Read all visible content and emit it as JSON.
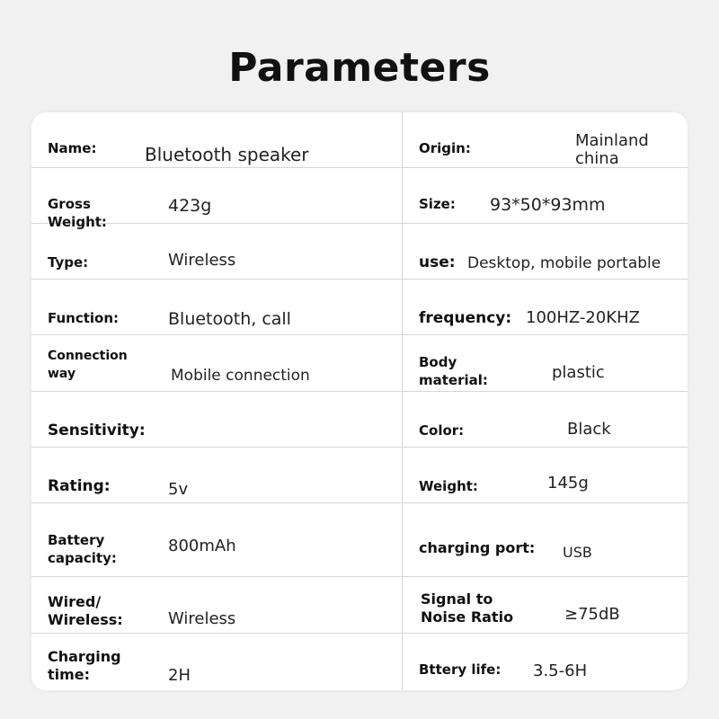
{
  "title": "Parameters",
  "rows": [
    {
      "left": {
        "label": "Name:",
        "value": "Bluetooth speaker"
      },
      "right": {
        "label": "Origin:",
        "value": "Mainland\nchina"
      }
    },
    {
      "left": {
        "label": "Gross\nWeight:",
        "value": "423g"
      },
      "right": {
        "label": "Size:",
        "value": "93*50*93mm"
      }
    },
    {
      "left": {
        "label": "Type:",
        "value": "Wireless"
      },
      "right": {
        "label": "use:",
        "value": "Desktop, mobile portable"
      }
    },
    {
      "left": {
        "label": "Function:",
        "value": "Bluetooth, call"
      },
      "right": {
        "label": "frequency:",
        "value": "100HZ-20KHZ"
      }
    },
    {
      "left": {
        "label": "Connection\nway",
        "value": "Mobile connection"
      },
      "right": {
        "label": "Body\nmaterial:",
        "value": "plastic"
      }
    },
    {
      "left": {
        "label": "Sensitivity:",
        "value": ""
      },
      "right": {
        "label": "Color:",
        "value": "Black"
      }
    },
    {
      "left": {
        "label": "Rating:",
        "value": "5v"
      },
      "right": {
        "label": "Weight:",
        "value": "145g"
      }
    },
    {
      "left": {
        "label": "Battery\ncapacity:",
        "value": "800mAh"
      },
      "right": {
        "label": "charging port:",
        "value": "USB"
      }
    },
    {
      "left": {
        "label": "Wired/\nWireless:",
        "value": "Wireless"
      },
      "right": {
        "label": "Signal to\nNoise Ratio",
        "value": "≥75dB"
      }
    },
    {
      "left": {
        "label": "Charging\ntime:",
        "value": "2H"
      },
      "right": {
        "label": "Bttery life:",
        "value": "3.5-6H"
      }
    }
  ]
}
